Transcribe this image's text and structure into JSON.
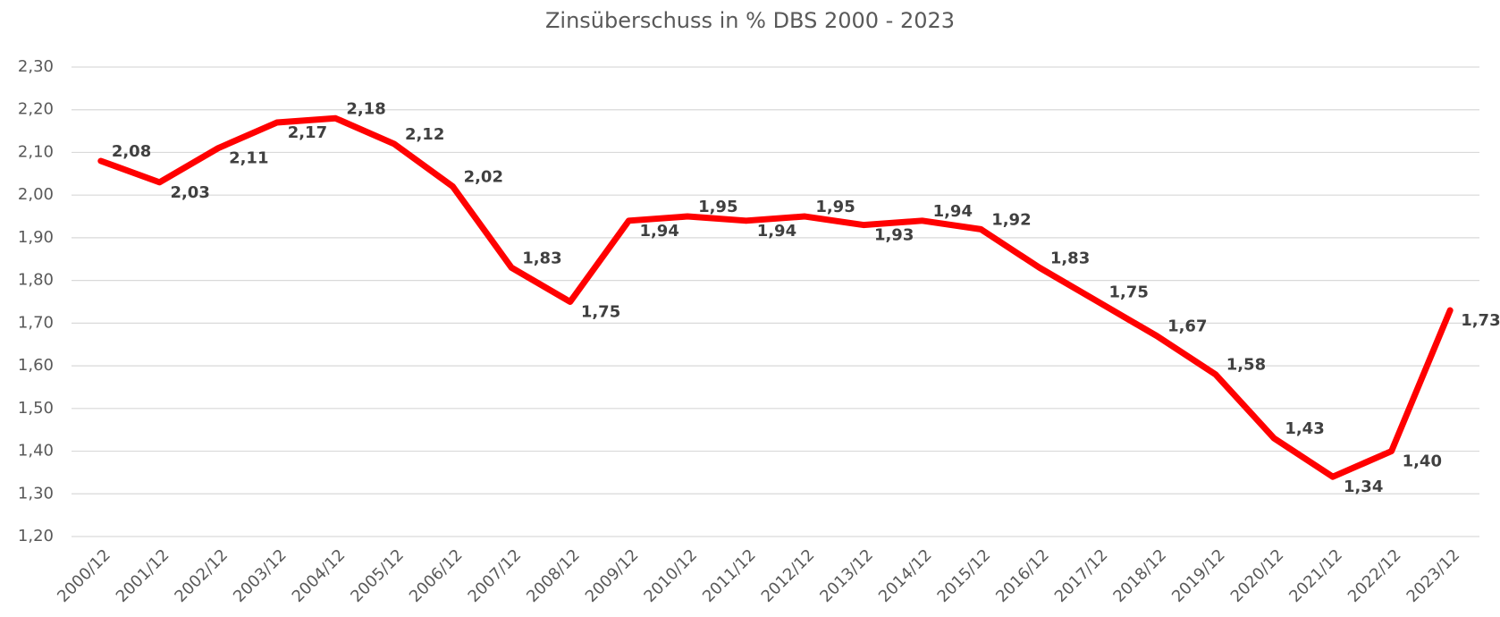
{
  "chart_data": {
    "type": "line",
    "title": "Zinsüberschuss in % DBS 2000 - 2023",
    "categories": [
      "2000/12",
      "2001/12",
      "2002/12",
      "2003/12",
      "2004/12",
      "2005/12",
      "2006/12",
      "2007/12",
      "2008/12",
      "2009/12",
      "2010/12",
      "2011/12",
      "2012/12",
      "2013/12",
      "2014/12",
      "2015/12",
      "2016/12",
      "2017/12",
      "2018/12",
      "2019/12",
      "2020/12",
      "2021/12",
      "2022/12",
      "2023/12"
    ],
    "series": [
      {
        "name": "Zinsüberschuss",
        "color": "#ff0000",
        "values": [
          2.08,
          2.03,
          2.11,
          2.17,
          2.18,
          2.12,
          2.02,
          1.83,
          1.75,
          1.94,
          1.95,
          1.94,
          1.95,
          1.93,
          1.94,
          1.92,
          1.83,
          1.75,
          1.67,
          1.58,
          1.43,
          1.34,
          1.4,
          1.73
        ],
        "value_labels": [
          "2,08",
          "2,03",
          "2,11",
          "2,17",
          "2,18",
          "2,12",
          "2,02",
          "1,83",
          "1,75",
          "1,94",
          "1,95",
          "1,94",
          "1,95",
          "1,93",
          "1,94",
          "1,92",
          "1,83",
          "1,75",
          "1,67",
          "1,58",
          "1,43",
          "1,34",
          "1,40",
          "1,73"
        ]
      }
    ],
    "ylim": [
      1.2,
      2.3
    ],
    "yticks": [
      {
        "value": 1.2,
        "label": "1,20"
      },
      {
        "value": 1.3,
        "label": "1,30"
      },
      {
        "value": 1.4,
        "label": "1,40"
      },
      {
        "value": 1.5,
        "label": "1,50"
      },
      {
        "value": 1.6,
        "label": "1,60"
      },
      {
        "value": 1.7,
        "label": "1,70"
      },
      {
        "value": 1.8,
        "label": "1,80"
      },
      {
        "value": 1.9,
        "label": "1,90"
      },
      {
        "value": 2.0,
        "label": "2,00"
      },
      {
        "value": 2.1,
        "label": "2,10"
      },
      {
        "value": 2.2,
        "label": "2,20"
      },
      {
        "value": 2.3,
        "label": "2,30"
      }
    ],
    "grid": true
  }
}
